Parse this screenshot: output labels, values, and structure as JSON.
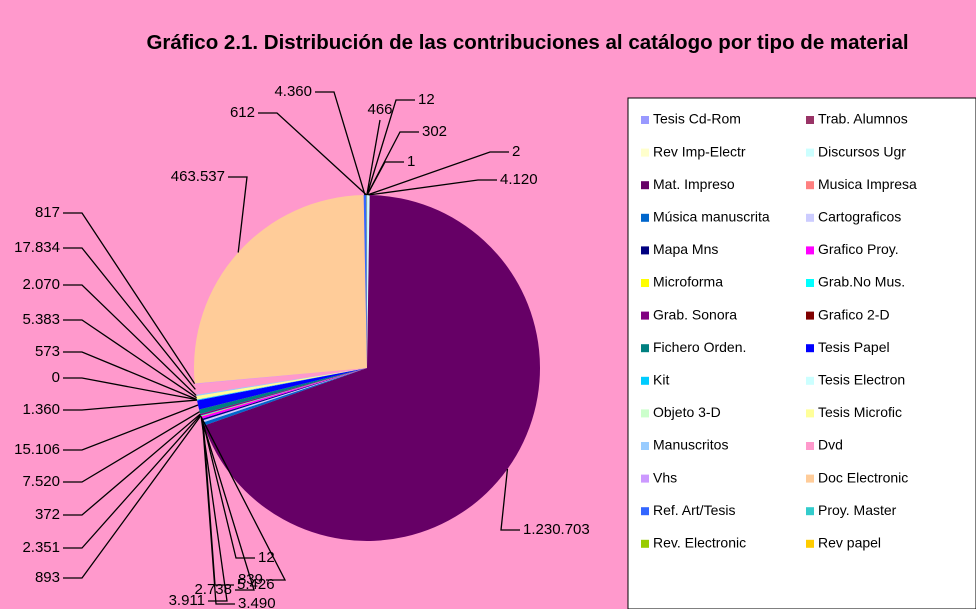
{
  "chart_data": {
    "type": "pie",
    "title": "Gráfico 2.1. Distribución de las contribuciones al catálogo por tipo de material",
    "categories": [
      "Tesis Cd-Rom",
      "Trab. Alumnos",
      "Rev Imp-Electr",
      "Discursos Ugr",
      "Mat. Impreso",
      "Musica Impresa",
      "Música manuscrita",
      "Cartograficos",
      "Mapa Mns",
      "Grafico Proy.",
      "Microforma",
      "Grab.No Mus.",
      "Grab. Sonora",
      "Grafico 2-D",
      "Fichero Orden.",
      "Tesis Papel",
      "Kit",
      "Tesis Electron",
      "Objeto 3-D",
      "Tesis Microfic",
      "Manuscritos",
      "Dvd",
      "Vhs",
      "Doc Electronic",
      "Ref. Art/Tesis",
      "Proy. Master",
      "Rev. Electronic",
      "Rev papel"
    ],
    "values": [
      302,
      1,
      2,
      4120,
      1230703,
      12,
      5426,
      3490,
      2738,
      3911,
      839,
      893,
      2351,
      372,
      7520,
      15106,
      1360,
      0,
      573,
      5383,
      2070,
      17834,
      817,
      463537,
      4360,
      612,
      466,
      12
    ],
    "value_labels": [
      "302",
      "1",
      "2",
      "4.120",
      "1.230.703",
      "12",
      "5.426",
      "3.490",
      "2.738",
      "3.911",
      "839",
      "893",
      "2.351",
      "372",
      "7.520",
      "15.106",
      "1.360",
      "0",
      "573",
      "5.383",
      "2.070",
      "17.834",
      "817",
      "463.537",
      "4.360",
      "612",
      "466",
      "12"
    ],
    "colors": [
      "#9999ff",
      "#993366",
      "#ffffcc",
      "#ccffff",
      "#660066",
      "#ff8080",
      "#0066cc",
      "#ccccff",
      "#000080",
      "#ff00ff",
      "#ffff00",
      "#00ffff",
      "#800080",
      "#800000",
      "#008080",
      "#0000ff",
      "#00ccff",
      "#ccffff",
      "#ccffcc",
      "#ffff99",
      "#99ccff",
      "#ff99cc",
      "#cc99ff",
      "#ffcc99",
      "#3366ff",
      "#33cccc",
      "#99cc00",
      "#ffcc00"
    ],
    "legend": "right"
  }
}
